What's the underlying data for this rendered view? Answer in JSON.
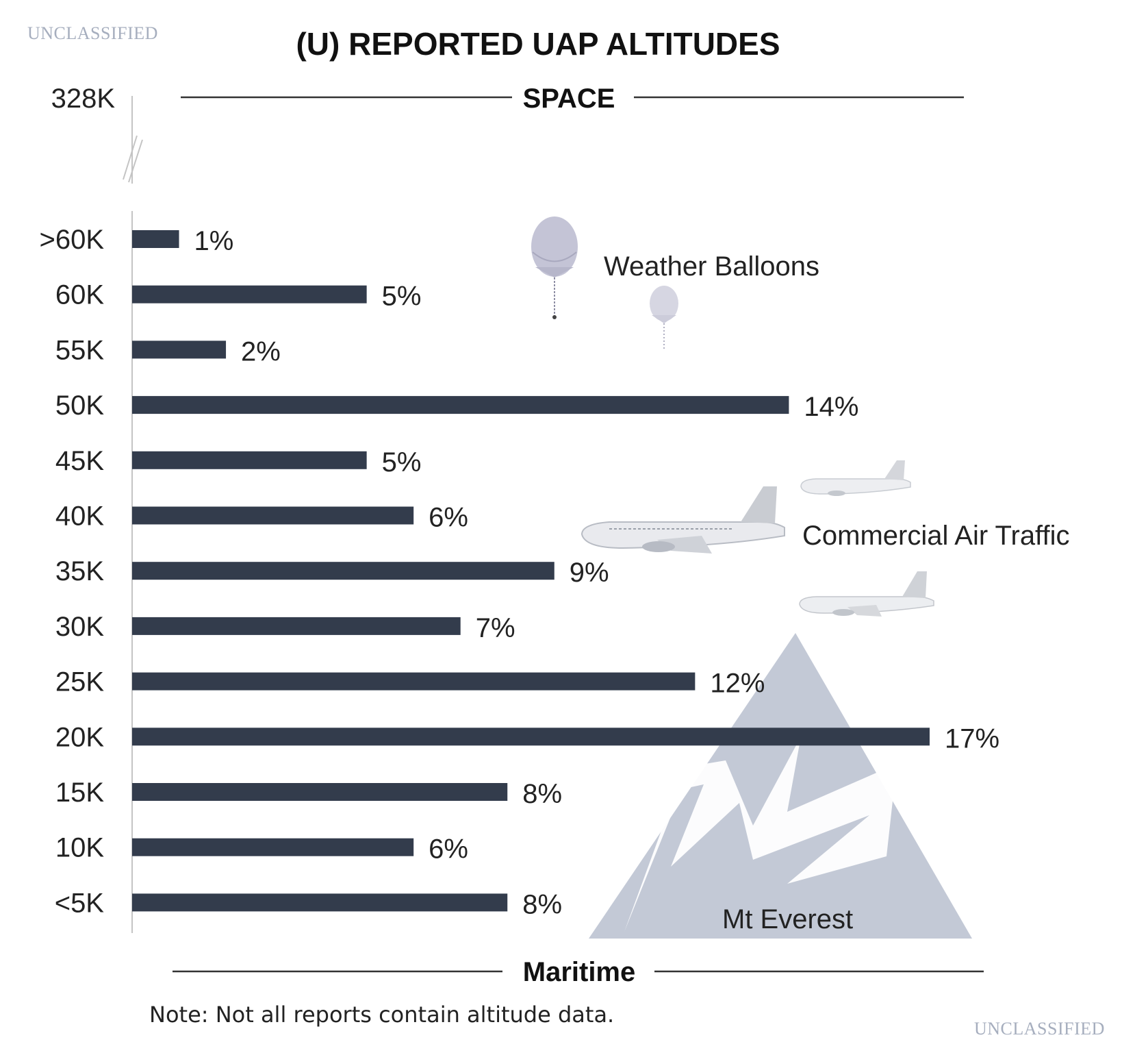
{
  "classification": {
    "top": "UNCLASSIFIED",
    "bottom": "UNCLASSIFIED"
  },
  "note": "Note: Not all reports contain altitude data.",
  "colors": {
    "bar": "#333c4c",
    "mountain": "#c3c9d6",
    "balloon": "#c4c4d6",
    "text": "#222222",
    "classification": "#a6aebe"
  },
  "icons": {
    "balloons": "weather-balloon-icon",
    "planes": "airplane-icon",
    "mountain": "mountain-icon"
  },
  "chart_data": {
    "type": "bar",
    "orientation": "horizontal",
    "title": "(U) REPORTED UAP ALTITUDES",
    "top_boundary": {
      "tick": "328K",
      "label": "SPACE"
    },
    "bottom_boundary": {
      "label": "Maritime"
    },
    "categories": [
      ">60K",
      "60K",
      "55K",
      "50K",
      "45K",
      "40K",
      "35K",
      "30K",
      "25K",
      "20K",
      "15K",
      "10K",
      "<5K"
    ],
    "values": [
      1,
      5,
      2,
      14,
      5,
      6,
      9,
      7,
      12,
      17,
      8,
      6,
      8
    ],
    "value_labels": [
      "1%",
      "5%",
      "2%",
      "14%",
      "5%",
      "6%",
      "9%",
      "7%",
      "12%",
      "17%",
      "8%",
      "6%",
      "8%"
    ],
    "unit": "%",
    "xlim": [
      0,
      17
    ],
    "axis_break": "between 328K and >60K",
    "annotations": [
      "Weather Balloons",
      "Commercial Air Traffic",
      "Mt Everest"
    ],
    "grid": false,
    "legend": "none"
  }
}
